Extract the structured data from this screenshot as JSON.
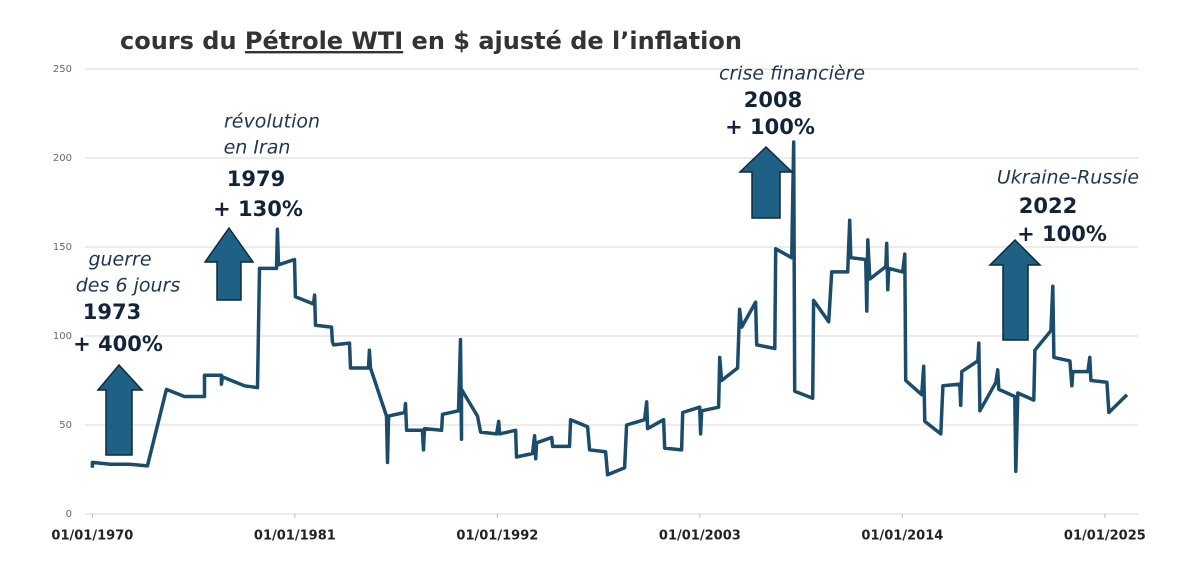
{
  "chart_data": {
    "type": "line",
    "title": {
      "before": "cours du ",
      "underlined": "Pétrole WTI",
      "after": " en $ ajusté de l’inflation"
    },
    "xlim": [
      1969.6,
      2026.8
    ],
    "ylim": [
      0,
      250
    ],
    "yticks": [
      0,
      50,
      100,
      150,
      200,
      250
    ],
    "xticks": [
      {
        "value": 1970,
        "label": "01/01/1970"
      },
      {
        "value": 1981,
        "label": "01/01/1981"
      },
      {
        "value": 1992,
        "label": "01/01/1992"
      },
      {
        "value": 2003,
        "label": "01/01/2003"
      },
      {
        "value": 2014,
        "label": "01/01/2014"
      },
      {
        "value": 2025,
        "label": "01/01/2025"
      }
    ],
    "grid": true,
    "series": [
      {
        "color": "#1b4d6b",
        "x": [
          1970.0,
          1970.0,
          1970.98,
          1972.01,
          1972.99,
          1974.02,
          1975.0,
          1976.09,
          1976.09,
          1977.01,
          1977.01,
          1977.07,
          1978.26,
          1978.97,
          1979.08,
          1980.0,
          1980.05,
          1980.11,
          1980.98,
          1981.03,
          1982.01,
          1982.07,
          1982.12,
          1982.99,
          1983.04,
          1983.1,
          1983.97,
          1984.02,
          1985.0,
          1985.05,
          1985.11,
          1985.98,
          1986.03,
          1986.09,
          1986.96,
          1987.01,
          1987.07,
          1987.93,
          1987.99,
          1988.04,
          1988.97,
          1989.02,
          1989.89,
          1990.0,
          1990.05,
          1990.05,
          1990.92,
          1991.09,
          1991.96,
          1992.07,
          1992.12,
          1992.99,
          1993.04,
          1993.91,
          1994.02,
          1994.08,
          1994.13,
          1994.95,
          1995.0,
          1995.92,
          1995.98,
          1996.9,
          1997.01,
          1997.88,
          1997.99,
          1998.91,
          1999.02,
          2000.0,
          2000.11,
          2000.16,
          2001.03,
          2001.09,
          2002.01,
          2002.07,
          2002.99,
          2003.04,
          2003.1,
          2004.02,
          2004.08,
          2004.18,
          2005.05,
          2005.16,
          2005.27,
          2006.03,
          2006.09,
          2007.07,
          2007.12,
          2007.99,
          2008.1,
          2008.15,
          2009.13,
          2009.18,
          2010.0,
          2010.16,
          2011.03,
          2011.14,
          2011.2,
          2012.01,
          2012.07,
          2012.12,
          2012.23,
          2013.1,
          2013.15,
          2013.21,
          2013.26,
          2014.02,
          2014.13,
          2014.18,
          2015.05,
          2015.16,
          2015.22,
          2016.09,
          2016.2,
          2017.12,
          2017.17,
          2017.23,
          2018.1,
          2018.15,
          2018.21,
          2019.08,
          2019.18,
          2019.24,
          2020.11,
          2020.16,
          2020.27,
          2021.14,
          2021.2,
          2022.07,
          2022.17,
          2022.23,
          2023.1,
          2023.21,
          2023.26,
          2024.08,
          2024.18,
          2024.24,
          2025.11,
          2025.22,
          2026.2
        ],
        "values": [
          26,
          29,
          28,
          28,
          27,
          70,
          66,
          66,
          78,
          78,
          73,
          77,
          72,
          71,
          138,
          138,
          160,
          140,
          143,
          122,
          118,
          123,
          106,
          105,
          97,
          95,
          96,
          82,
          82,
          92,
          82,
          55,
          29,
          55,
          57,
          62,
          47,
          47,
          36,
          48,
          47,
          56,
          58,
          98,
          42,
          70,
          55,
          46,
          45,
          52,
          45,
          47,
          32,
          34,
          44,
          31,
          40,
          43,
          38,
          38,
          53,
          49,
          36,
          35,
          22,
          26,
          50,
          53,
          63,
          48,
          53,
          37,
          36,
          57,
          60,
          45,
          58,
          60,
          88,
          75,
          82,
          115,
          105,
          119,
          95,
          93,
          149,
          144,
          209,
          69,
          65,
          120,
          108,
          136,
          136,
          165,
          144,
          143,
          114,
          154,
          132,
          139,
          152,
          126,
          138,
          136,
          146,
          75,
          67,
          83,
          52,
          45,
          72,
          73,
          61,
          80,
          86,
          96,
          58,
          74,
          81,
          70,
          66,
          24,
          68,
          64,
          92,
          103,
          128,
          88,
          86,
          72,
          80,
          80,
          88,
          75,
          74,
          57,
          67
        ]
      }
    ],
    "annotations": [
      {
        "lines": [
          "guerre",
          "des 6 jours",
          "1973",
          "+ 400%"
        ]
      },
      {
        "lines": [
          "révolution",
          "en Iran",
          "1979",
          "+ 130%"
        ]
      },
      {
        "lines": [
          "crise financière",
          "2008",
          "+ 100%"
        ]
      },
      {
        "lines": [
          "Ukraine-Russie",
          "2022",
          "+ 100%"
        ]
      }
    ]
  }
}
